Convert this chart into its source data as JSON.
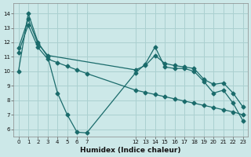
{
  "xlabel": "Humidex (Indice chaleur)",
  "ylabel": "",
  "bg_color": "#cce8e8",
  "grid_color": "#aad0d0",
  "line_color": "#1a6b6b",
  "xlim": [
    -0.5,
    23.5
  ],
  "ylim": [
    5.5,
    14.7
  ],
  "xticks": [
    0,
    1,
    2,
    3,
    4,
    5,
    6,
    7,
    12,
    13,
    14,
    15,
    16,
    17,
    18,
    19,
    20,
    21,
    22,
    23
  ],
  "yticks": [
    6,
    7,
    8,
    9,
    10,
    11,
    12,
    13,
    14
  ],
  "line1_x": [
    0,
    1,
    2,
    3,
    4,
    5,
    6,
    7,
    12,
    13,
    14,
    15,
    16,
    17,
    18,
    19,
    20,
    21,
    22,
    23
  ],
  "line1_y": [
    10.0,
    14.0,
    12.0,
    11.0,
    8.5,
    7.0,
    5.8,
    5.75,
    9.9,
    10.5,
    11.7,
    10.3,
    10.2,
    10.2,
    10.0,
    9.3,
    8.5,
    8.7,
    7.8,
    6.6
  ],
  "line2_x": [
    0,
    1,
    2,
    3,
    12,
    13,
    14,
    15,
    16,
    17,
    18,
    19,
    20,
    21,
    22,
    23
  ],
  "line2_y": [
    11.6,
    13.6,
    11.9,
    11.1,
    10.1,
    10.4,
    11.1,
    10.55,
    10.4,
    10.3,
    10.2,
    9.45,
    9.1,
    9.2,
    8.5,
    7.55
  ],
  "line3_x": [
    0,
    1,
    2,
    3,
    4,
    5,
    6,
    7,
    12,
    13,
    14,
    15,
    16,
    17,
    18,
    19,
    20,
    21,
    22,
    23
  ],
  "line3_y": [
    11.3,
    13.2,
    11.65,
    10.85,
    10.6,
    10.35,
    10.1,
    9.85,
    8.7,
    8.55,
    8.4,
    8.25,
    8.1,
    7.95,
    7.8,
    7.65,
    7.5,
    7.35,
    7.2,
    7.0
  ]
}
